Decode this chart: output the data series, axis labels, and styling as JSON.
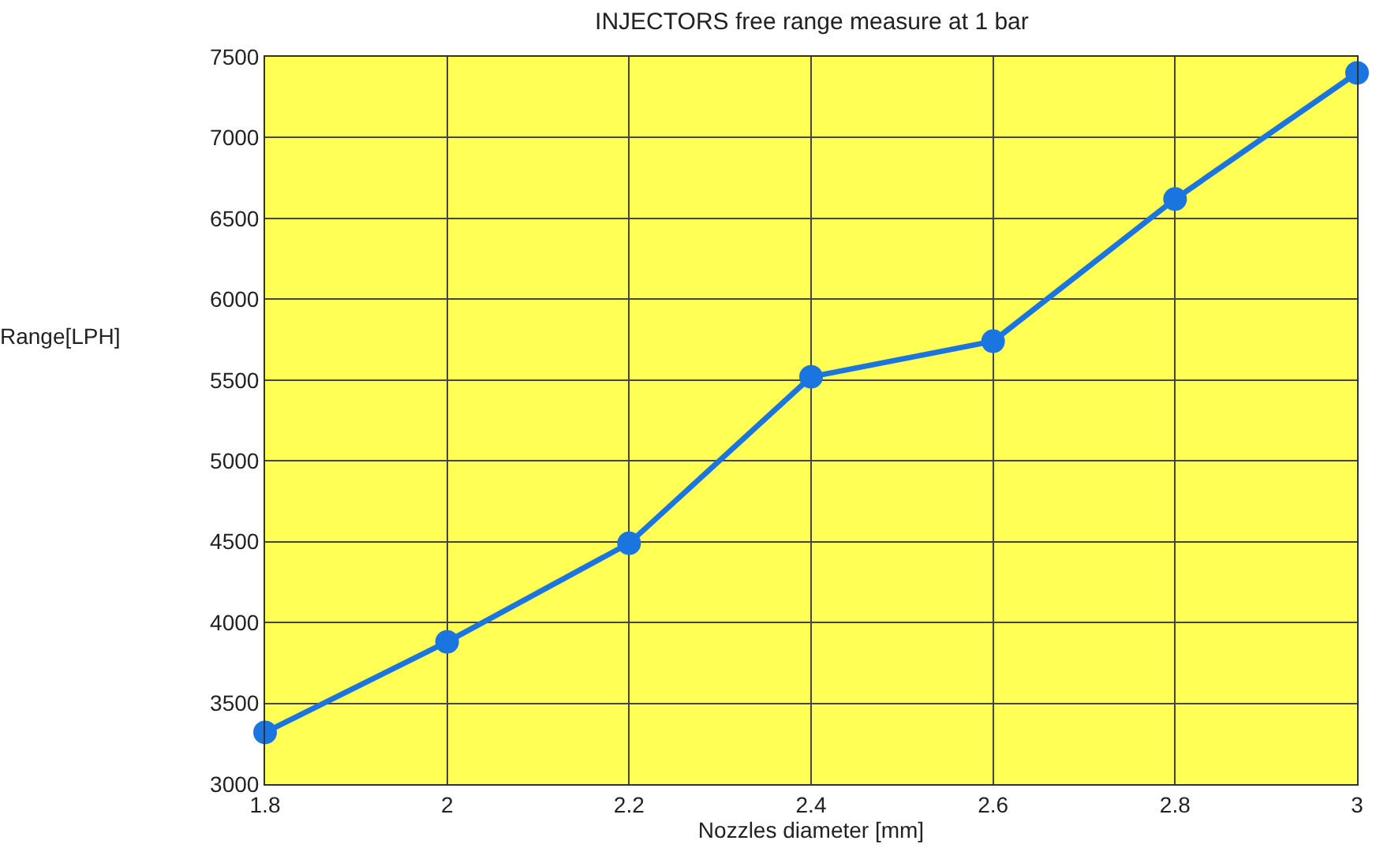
{
  "chart_data": {
    "type": "line",
    "title": "INJECTORS free range measure at 1 bar",
    "xlabel": "Nozzles diameter [mm]",
    "ylabel": "Range[LPH]",
    "x": [
      1.8,
      2,
      2.2,
      2.4,
      2.6,
      2.8,
      3
    ],
    "series": [
      {
        "color": "#1a75e0",
        "values": [
          3320,
          3880,
          4490,
          5520,
          5740,
          6620,
          7400
        ]
      }
    ],
    "xlim": [
      1.8,
      3
    ],
    "xticks": [
      1.8,
      2,
      2.2,
      2.4,
      2.6,
      2.8,
      3
    ],
    "ylim": [
      3000,
      7500
    ],
    "yticks": [
      3000,
      3500,
      4000,
      4500,
      5000,
      5500,
      6000,
      6500,
      7000,
      7500
    ],
    "grid": true,
    "marker": "circle",
    "line_style": "solid"
  }
}
